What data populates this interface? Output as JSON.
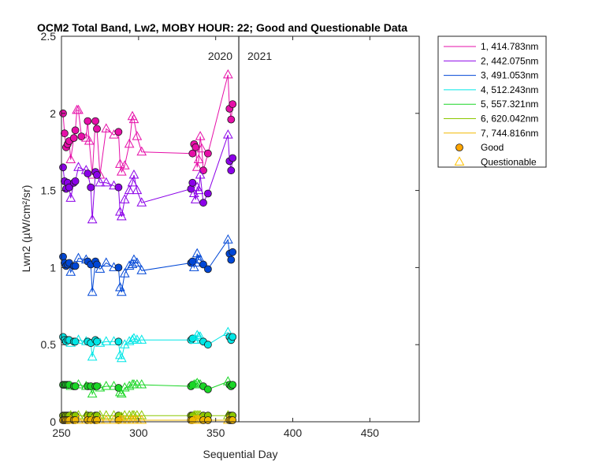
{
  "chart_data": {
    "type": "line",
    "title": "OCM2 Total Band, Lw2, MOBY HOUR: 22;  Good and Questionable Data",
    "xlabel": "Sequential Day",
    "ylabel": "Lwn2 (µW/cm²/sr)",
    "xlim": [
      250,
      482
    ],
    "ylim": [
      0,
      2.5
    ],
    "xticks": [
      250,
      300,
      350,
      400,
      450
    ],
    "yticks": [
      0,
      0.5,
      1,
      1.5,
      2,
      2.5
    ],
    "year_divider": {
      "x": 365,
      "left_label": "2020",
      "right_label": "2021"
    },
    "good_marker_color": "#FFA500",
    "questionable_marker_color": "#FFC000",
    "series": [
      {
        "name": "1, 414.783nm",
        "color": "#E60FA8",
        "x": [
          251,
          252,
          253,
          254,
          255,
          256,
          258,
          259,
          260,
          261,
          263,
          266,
          267,
          268,
          270,
          272,
          273,
          275,
          279,
          284,
          287,
          288,
          289,
          291,
          294,
          296,
          297,
          299,
          302,
          335,
          336,
          337,
          338,
          339,
          340,
          341,
          342,
          345,
          358,
          359,
          360,
          361
        ],
        "y": [
          2.0,
          1.87,
          1.78,
          1.8,
          1.82,
          1.7,
          1.84,
          1.89,
          2.02,
          2.02,
          1.85,
          1.84,
          1.95,
          1.82,
          1.6,
          1.95,
          1.9,
          1.6,
          1.9,
          1.86,
          1.88,
          1.67,
          1.62,
          1.66,
          1.8,
          1.98,
          1.96,
          1.85,
          1.75,
          1.74,
          1.8,
          1.78,
          1.65,
          1.7,
          1.85,
          1.77,
          1.63,
          1.74,
          2.25,
          2.03,
          1.96,
          2.06
        ],
        "quality": [
          "G",
          "G",
          "G",
          "G",
          "G",
          "Q",
          "G",
          "G",
          "Q",
          "Q",
          "G",
          "Q",
          "G",
          "Q",
          "Q",
          "G",
          "G",
          "Q",
          "Q",
          "Q",
          "G",
          "Q",
          "Q",
          "Q",
          "Q",
          "Q",
          "Q",
          "Q",
          "Q",
          "G",
          "G",
          "G",
          "Q",
          "Q",
          "Q",
          "Q",
          "G",
          "G",
          "Q",
          "G",
          "G",
          "G"
        ]
      },
      {
        "name": "2, 442.075nm",
        "color": "#8B00E8",
        "x": [
          251,
          252,
          253,
          254,
          255,
          256,
          258,
          259,
          261,
          266,
          267,
          269,
          270,
          272,
          273,
          275,
          279,
          284,
          287,
          288,
          289,
          291,
          294,
          296,
          297,
          299,
          302,
          334,
          335,
          336,
          337,
          338,
          339,
          340,
          342,
          345,
          358,
          359,
          360,
          361
        ],
        "y": [
          1.65,
          1.56,
          1.51,
          1.55,
          1.52,
          1.45,
          1.55,
          1.56,
          1.65,
          1.63,
          1.61,
          1.52,
          1.31,
          1.62,
          1.6,
          1.55,
          1.55,
          1.53,
          1.52,
          1.36,
          1.33,
          1.44,
          1.5,
          1.55,
          1.6,
          1.5,
          1.42,
          1.51,
          1.55,
          1.48,
          1.44,
          1.52,
          1.5,
          1.6,
          1.42,
          1.48,
          1.86,
          1.69,
          1.63,
          1.71
        ],
        "quality": [
          "G",
          "G",
          "G",
          "G",
          "G",
          "Q",
          "G",
          "G",
          "Q",
          "Q",
          "G",
          "G",
          "Q",
          "G",
          "G",
          "Q",
          "Q",
          "Q",
          "G",
          "Q",
          "Q",
          "Q",
          "Q",
          "Q",
          "Q",
          "Q",
          "Q",
          "G",
          "G",
          "Q",
          "Q",
          "Q",
          "Q",
          "Q",
          "G",
          "G",
          "Q",
          "G",
          "G",
          "G"
        ]
      },
      {
        "name": "3, 491.053nm",
        "color": "#0047D6",
        "x": [
          251,
          252,
          253,
          254,
          255,
          256,
          258,
          259,
          261,
          266,
          267,
          269,
          270,
          272,
          273,
          275,
          279,
          284,
          287,
          288,
          289,
          291,
          294,
          296,
          297,
          299,
          302,
          334,
          335,
          336,
          337,
          338,
          339,
          340,
          342,
          345,
          358,
          359,
          360,
          361
        ],
        "y": [
          1.07,
          1.03,
          1.01,
          1.02,
          1.03,
          0.97,
          1.01,
          1.01,
          1.06,
          1.05,
          1.04,
          1.02,
          0.84,
          1.04,
          1.02,
          0.99,
          1.03,
          1.0,
          1.0,
          0.87,
          0.84,
          0.96,
          1.01,
          1.02,
          1.05,
          1.03,
          0.98,
          1.03,
          1.04,
          1.0,
          1.03,
          1.09,
          1.05,
          1.05,
          1.02,
          0.99,
          1.18,
          1.09,
          1.05,
          1.1
        ],
        "quality": [
          "G",
          "G",
          "G",
          "G",
          "G",
          "Q",
          "G",
          "G",
          "Q",
          "Q",
          "G",
          "G",
          "Q",
          "G",
          "G",
          "Q",
          "Q",
          "Q",
          "G",
          "Q",
          "Q",
          "Q",
          "Q",
          "Q",
          "Q",
          "Q",
          "Q",
          "G",
          "G",
          "Q",
          "Q",
          "Q",
          "Q",
          "Q",
          "G",
          "G",
          "Q",
          "G",
          "G",
          "G"
        ]
      },
      {
        "name": "4, 512.243nm",
        "color": "#00E6E6",
        "x": [
          251,
          252,
          253,
          254,
          255,
          256,
          258,
          259,
          261,
          266,
          267,
          269,
          270,
          272,
          273,
          275,
          279,
          284,
          287,
          288,
          289,
          291,
          294,
          296,
          297,
          299,
          302,
          334,
          335,
          336,
          337,
          338,
          339,
          340,
          342,
          345,
          358,
          359,
          360,
          361
        ],
        "y": [
          0.55,
          0.53,
          0.52,
          0.53,
          0.53,
          0.51,
          0.52,
          0.52,
          0.53,
          0.52,
          0.52,
          0.51,
          0.42,
          0.53,
          0.52,
          0.51,
          0.52,
          0.52,
          0.52,
          0.43,
          0.41,
          0.5,
          0.52,
          0.53,
          0.54,
          0.53,
          0.53,
          0.53,
          0.54,
          0.53,
          0.53,
          0.56,
          0.55,
          0.55,
          0.52,
          0.5,
          0.58,
          0.55,
          0.53,
          0.55
        ],
        "quality": [
          "G",
          "G",
          "G",
          "G",
          "G",
          "Q",
          "G",
          "G",
          "Q",
          "Q",
          "G",
          "G",
          "Q",
          "G",
          "G",
          "Q",
          "Q",
          "Q",
          "G",
          "Q",
          "Q",
          "Q",
          "Q",
          "Q",
          "Q",
          "Q",
          "Q",
          "G",
          "G",
          "Q",
          "Q",
          "Q",
          "Q",
          "Q",
          "G",
          "G",
          "Q",
          "G",
          "G",
          "G"
        ]
      },
      {
        "name": "5, 557.321nm",
        "color": "#1AD626",
        "x": [
          251,
          252,
          253,
          254,
          255,
          256,
          258,
          259,
          261,
          266,
          267,
          269,
          270,
          272,
          273,
          275,
          279,
          284,
          287,
          288,
          289,
          291,
          294,
          296,
          297,
          299,
          302,
          334,
          335,
          336,
          337,
          338,
          339,
          340,
          342,
          345,
          358,
          359,
          360,
          361
        ],
        "y": [
          0.24,
          0.24,
          0.24,
          0.24,
          0.24,
          0.23,
          0.23,
          0.23,
          0.24,
          0.23,
          0.23,
          0.23,
          0.18,
          0.23,
          0.23,
          0.22,
          0.23,
          0.23,
          0.22,
          0.19,
          0.18,
          0.22,
          0.23,
          0.24,
          0.24,
          0.24,
          0.24,
          0.23,
          0.24,
          0.24,
          0.24,
          0.25,
          0.24,
          0.24,
          0.23,
          0.21,
          0.26,
          0.24,
          0.23,
          0.24
        ],
        "quality": [
          "G",
          "G",
          "G",
          "G",
          "G",
          "Q",
          "G",
          "G",
          "Q",
          "Q",
          "G",
          "G",
          "Q",
          "G",
          "G",
          "Q",
          "Q",
          "Q",
          "G",
          "Q",
          "Q",
          "Q",
          "Q",
          "Q",
          "Q",
          "Q",
          "Q",
          "G",
          "G",
          "Q",
          "Q",
          "Q",
          "Q",
          "Q",
          "G",
          "G",
          "Q",
          "G",
          "G",
          "G"
        ]
      },
      {
        "name": "6, 620.042nm",
        "color": "#8CC800",
        "x": [
          251,
          252,
          253,
          254,
          255,
          256,
          258,
          259,
          261,
          266,
          267,
          269,
          270,
          272,
          273,
          275,
          279,
          284,
          287,
          288,
          289,
          291,
          294,
          296,
          297,
          299,
          302,
          334,
          335,
          336,
          337,
          338,
          339,
          340,
          342,
          345,
          358,
          359,
          360,
          361
        ],
        "y": [
          0.04,
          0.04,
          0.04,
          0.04,
          0.04,
          0.04,
          0.04,
          0.04,
          0.04,
          0.04,
          0.04,
          0.04,
          0.03,
          0.04,
          0.04,
          0.04,
          0.04,
          0.04,
          0.04,
          0.03,
          0.03,
          0.04,
          0.04,
          0.04,
          0.04,
          0.04,
          0.04,
          0.04,
          0.04,
          0.04,
          0.04,
          0.04,
          0.04,
          0.04,
          0.04,
          0.04,
          0.04,
          0.04,
          0.04,
          0.04
        ],
        "quality": [
          "G",
          "G",
          "G",
          "G",
          "G",
          "Q",
          "G",
          "G",
          "Q",
          "Q",
          "G",
          "G",
          "Q",
          "G",
          "G",
          "Q",
          "Q",
          "Q",
          "G",
          "Q",
          "Q",
          "Q",
          "Q",
          "Q",
          "Q",
          "Q",
          "Q",
          "G",
          "G",
          "Q",
          "Q",
          "Q",
          "Q",
          "Q",
          "G",
          "G",
          "Q",
          "G",
          "G",
          "G"
        ]
      },
      {
        "name": "7, 744.816nm",
        "color": "#F2B800",
        "x": [
          251,
          252,
          253,
          254,
          255,
          256,
          258,
          259,
          261,
          266,
          267,
          269,
          270,
          272,
          273,
          275,
          279,
          284,
          287,
          288,
          289,
          291,
          294,
          296,
          297,
          299,
          302,
          334,
          335,
          336,
          337,
          338,
          339,
          340,
          342,
          345,
          358,
          359,
          360,
          361
        ],
        "y": [
          0.01,
          0.01,
          0.01,
          0.01,
          0.01,
          0.01,
          0.01,
          0.01,
          0.01,
          0.01,
          0.01,
          0.01,
          0.01,
          0.01,
          0.01,
          0.01,
          0.01,
          0.01,
          0.01,
          0.01,
          0.01,
          0.01,
          0.01,
          0.01,
          0.01,
          0.01,
          0.01,
          0.01,
          0.01,
          0.01,
          0.01,
          0.01,
          0.01,
          0.01,
          0.01,
          0.01,
          0.01,
          0.01,
          0.01,
          0.01
        ],
        "quality": [
          "G",
          "G",
          "G",
          "G",
          "G",
          "Q",
          "G",
          "G",
          "Q",
          "Q",
          "G",
          "G",
          "Q",
          "G",
          "G",
          "Q",
          "Q",
          "Q",
          "G",
          "Q",
          "Q",
          "Q",
          "Q",
          "Q",
          "Q",
          "Q",
          "Q",
          "G",
          "G",
          "Q",
          "Q",
          "Q",
          "Q",
          "Q",
          "G",
          "G",
          "Q",
          "G",
          "G",
          "G"
        ]
      }
    ],
    "legend": {
      "placement": "outside-top-right",
      "entries": [
        "1, 414.783nm",
        "2, 442.075nm",
        "3, 491.053nm",
        "4, 512.243nm",
        "5, 557.321nm",
        "6, 620.042nm",
        "7, 744.816nm",
        "Good",
        "Questionable"
      ]
    }
  }
}
